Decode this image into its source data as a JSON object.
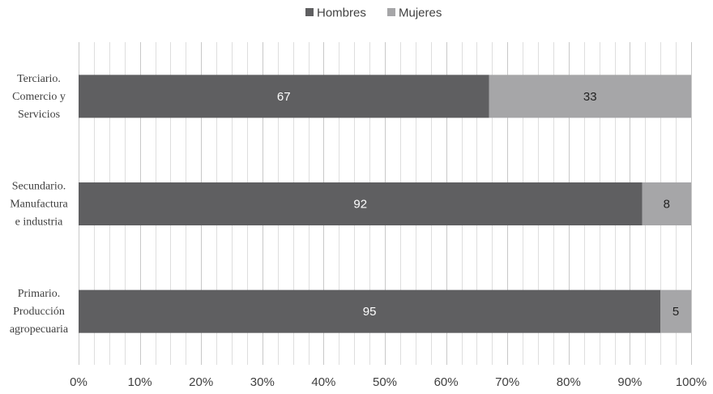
{
  "chart_data": {
    "type": "bar",
    "orientation": "horizontal",
    "stacked": true,
    "categories": [
      [
        "Terciario.",
        "Comercio y",
        "Servicios"
      ],
      [
        "Secundario.",
        "Manufactura",
        "e industria"
      ],
      [
        "Primario.",
        "Producción",
        "agropecuaria"
      ]
    ],
    "series": [
      {
        "name": "Hombres",
        "values": [
          67,
          92,
          95
        ],
        "color": "#5f5f61",
        "label_color": "#ffffff"
      },
      {
        "name": "Mujeres",
        "values": [
          33,
          8,
          5
        ],
        "color": "#a6a6a8",
        "label_color": "#222222"
      }
    ],
    "xlim": [
      0,
      100
    ],
    "xticks": [
      "0%",
      "10%",
      "20%",
      "30%",
      "40%",
      "50%",
      "60%",
      "70%",
      "80%",
      "90%",
      "100%"
    ],
    "grid": "vertical",
    "legend_position": "top-center",
    "title": "",
    "xlabel": "",
    "ylabel": ""
  }
}
